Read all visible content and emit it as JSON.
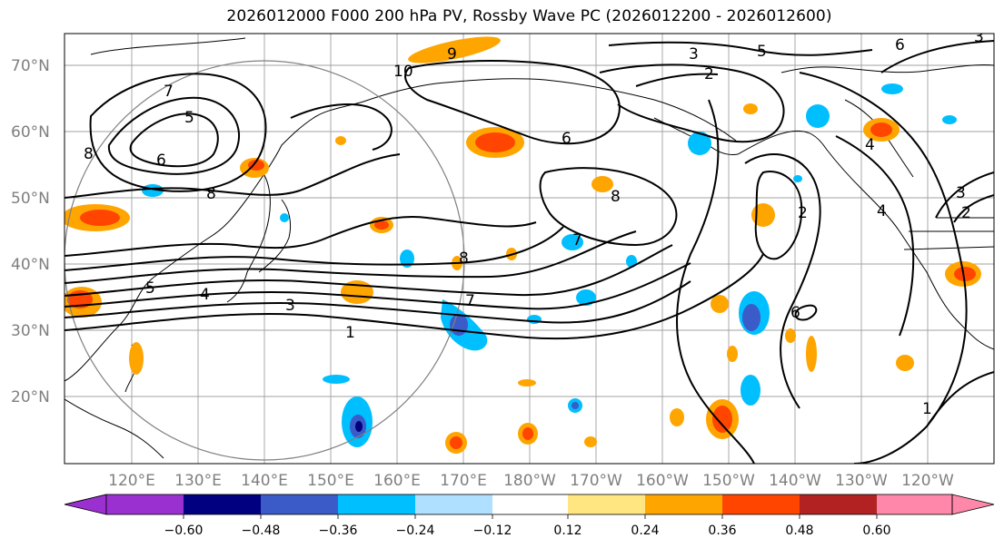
{
  "title": "2026012000 F000 200 hPa PV, Rossby Wave PC (2026012200 - 2026012600)",
  "lat_labels": [
    "70°N",
    "60°N",
    "50°N",
    "40°N",
    "30°N",
    "20°N"
  ],
  "lon_labels": [
    "120°E",
    "130°E",
    "140°E",
    "150°E",
    "160°E",
    "170°E",
    "180°W",
    "170°W",
    "160°W",
    "150°W",
    "140°W",
    "130°W",
    "120°W"
  ],
  "colorbar": {
    "ticks": [
      "−0.60",
      "−0.48",
      "−0.36",
      "−0.24",
      "−0.12",
      "0.12",
      "0.24",
      "0.36",
      "0.48",
      "0.60"
    ],
    "colors": [
      "#9b30d0",
      "#000080",
      "#3a5bc8",
      "#00bfff",
      "#b0e0ff",
      "#ffffff",
      "#ffe680",
      "#ffa500",
      "#ff4500",
      "#b22222",
      "#ff88aa"
    ]
  },
  "contour_labels": [
    "8",
    "7",
    "5",
    "6",
    "8",
    "5",
    "4",
    "3",
    "1",
    "7",
    "8",
    "6",
    "5",
    "3",
    "2",
    "3",
    "4",
    "2",
    "4",
    "6",
    "7",
    "2",
    "1",
    "9",
    "10",
    "8",
    "6",
    "3"
  ]
}
